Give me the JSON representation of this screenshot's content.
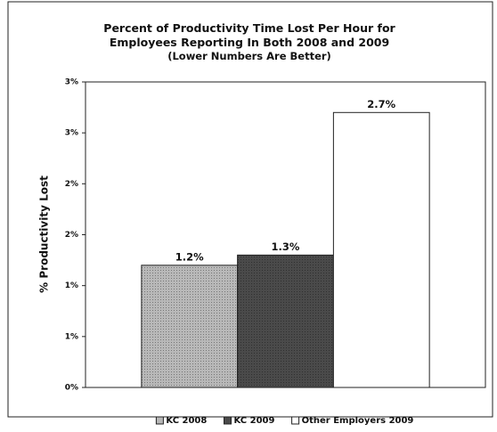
{
  "chart_data": {
    "type": "bar",
    "title": "Percent of Productivity Time Lost Per Hour for Employees Reporting In Both 2008 and 2009",
    "subtitle": "(Lower Numbers Are Better)",
    "y_label": "% Productivity Lost",
    "categories": [
      null
    ],
    "series": [
      {
        "name": "KC 2008",
        "color": "#b8b8b8",
        "values": [
          1.2
        ],
        "value_labels": [
          "1.2%"
        ]
      },
      {
        "name": "KC 2009",
        "color": "#4a4a4a",
        "values": [
          1.3
        ],
        "value_labels": [
          "1.3%"
        ]
      },
      {
        "name": "Other Employers 2009",
        "color": "#ffffff",
        "values": [
          2.7
        ],
        "value_labels": [
          "2.7%"
        ]
      }
    ],
    "ylim": [
      0,
      3
    ],
    "yticks": [
      {
        "value": 0,
        "label": "0%"
      },
      {
        "value": 0.5,
        "label": "1%"
      },
      {
        "value": 1,
        "label": "1%"
      },
      {
        "value": 1.5,
        "label": "2%"
      },
      {
        "value": 2,
        "label": "2%"
      },
      {
        "value": 2.5,
        "label": "3%"
      },
      {
        "value": 3,
        "label": "3%"
      }
    ],
    "legend": "bottom"
  }
}
